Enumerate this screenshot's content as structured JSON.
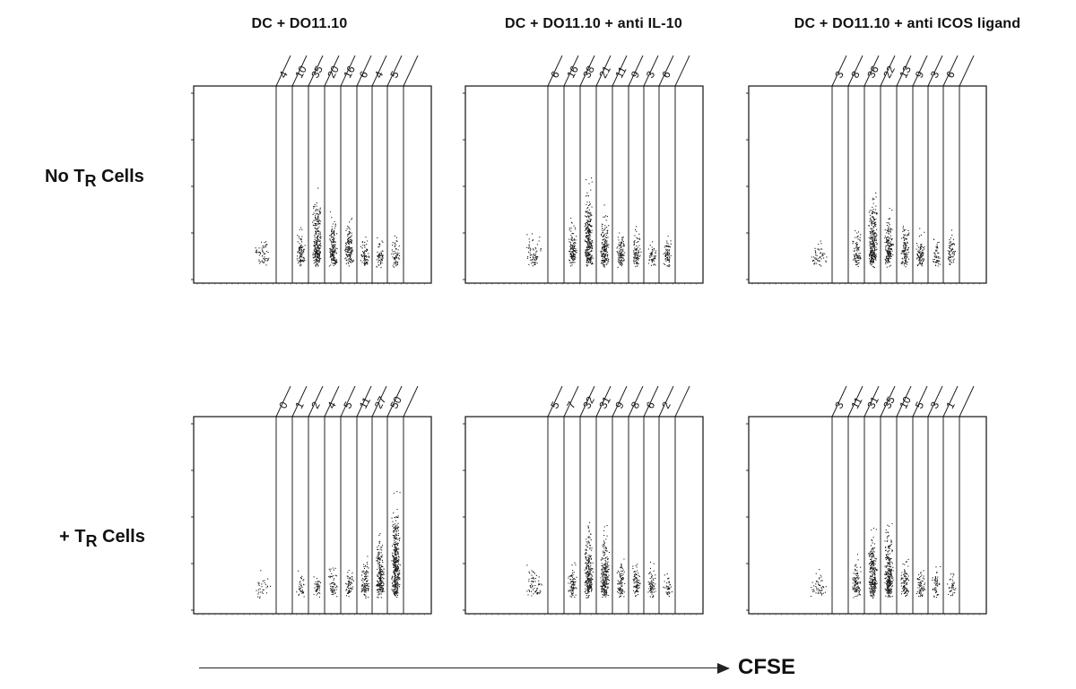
{
  "column_titles": [
    "DC + DO11.10",
    "DC + DO11.10  + anti IL-10",
    "DC + DO11.10  + anti ICOS ligand"
  ],
  "row_labels": [
    {
      "prefix": "No T",
      "subscript": "R",
      "suffix": " Cells"
    },
    {
      "prefix": "+ T",
      "subscript": "R",
      "suffix": " Cells"
    }
  ],
  "x_axis_label": "CFSE",
  "chart_data": [
    {
      "type": "scatter",
      "panel": "row1-col1",
      "gate_percentages": [
        "4",
        "10",
        "35",
        "20",
        "16",
        "6",
        "4",
        "5"
      ]
    },
    {
      "type": "scatter",
      "panel": "row1-col2",
      "gate_percentages": [
        "6",
        "16",
        "38",
        "21",
        "11",
        "9",
        "3",
        "6"
      ]
    },
    {
      "type": "scatter",
      "panel": "row1-col3",
      "gate_percentages": [
        "3",
        "8",
        "36",
        "22",
        "13",
        "9",
        "3",
        "6"
      ]
    },
    {
      "type": "scatter",
      "panel": "row2-col1",
      "gate_percentages": [
        "0",
        "1",
        "2",
        "4",
        "5",
        "11",
        "27",
        "50"
      ]
    },
    {
      "type": "scatter",
      "panel": "row2-col2",
      "gate_percentages": [
        "5",
        "7",
        "32",
        "31",
        "9",
        "8",
        "6",
        "2"
      ]
    },
    {
      "type": "scatter",
      "panel": "row2-col3",
      "gate_percentages": [
        "3",
        "11",
        "31",
        "35",
        "10",
        "5",
        "3",
        "1"
      ]
    }
  ]
}
